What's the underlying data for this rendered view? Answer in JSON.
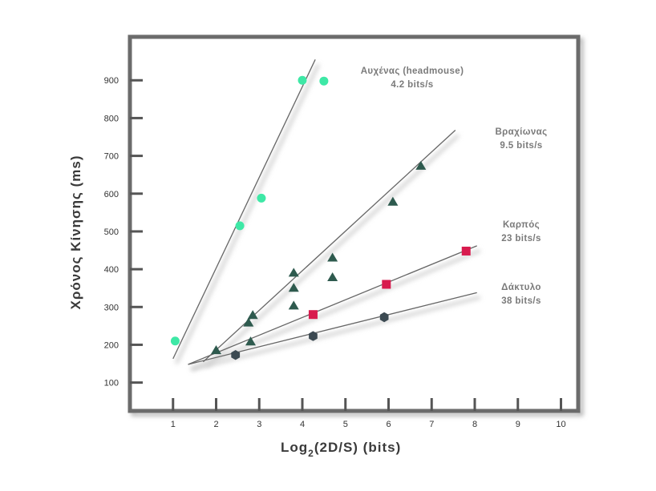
{
  "chart_data": {
    "type": "scatter",
    "ylabel": "Χρόνος Κίνησης (ms)",
    "xlabel_main": "Log",
    "xlabel_sub": "2",
    "xlabel_rest": "(2D/S)  (bits)",
    "xlim": [
      0,
      10.4
    ],
    "ylim": [
      25,
      1015
    ],
    "x_ticks": [
      1,
      2,
      3,
      4,
      5,
      6,
      7,
      8,
      9,
      10
    ],
    "y_ticks": [
      100,
      200,
      300,
      400,
      500,
      600,
      700,
      800,
      900
    ],
    "grid": false,
    "colors": {
      "frame": "#6b6b6b",
      "fit_line": "#666666",
      "neck": "#3ee8a6",
      "arm": "#2e5a4e",
      "wrist": "#d81b4e",
      "finger": "#3c4a52"
    },
    "series": [
      {
        "annotation": "Αυχένας (headmouse)",
        "rate": "4.2 bits/s",
        "marker": "circle",
        "points": [
          [
            1.05,
            210
          ],
          [
            2.55,
            515
          ],
          [
            3.05,
            588
          ],
          [
            4.0,
            900
          ],
          [
            4.5,
            898
          ]
        ],
        "fit": [
          [
            1.0,
            163
          ],
          [
            4.3,
            955
          ]
        ]
      },
      {
        "annotation": "Βραχίωνας",
        "rate": "9.5 bits/s",
        "marker": "triangle",
        "points": [
          [
            2.0,
            185
          ],
          [
            2.75,
            258
          ],
          [
            2.85,
            278
          ],
          [
            2.8,
            208
          ],
          [
            3.8,
            390
          ],
          [
            3.8,
            350
          ],
          [
            3.8,
            303
          ],
          [
            4.7,
            430
          ],
          [
            4.7,
            378
          ],
          [
            6.1,
            578
          ],
          [
            6.75,
            673
          ]
        ],
        "fit": [
          [
            1.7,
            155
          ],
          [
            7.55,
            768
          ]
        ]
      },
      {
        "annotation": "Καρπός",
        "rate": "23 bits/s",
        "marker": "square",
        "points": [
          [
            4.25,
            280
          ],
          [
            5.95,
            360
          ],
          [
            7.8,
            448
          ]
        ],
        "fit": [
          [
            1.35,
            148
          ],
          [
            8.05,
            462
          ]
        ]
      },
      {
        "annotation": "Δάκτυλο",
        "rate": "38 bits/s",
        "marker": "hexagon",
        "points": [
          [
            2.45,
            173
          ],
          [
            4.25,
            223
          ],
          [
            5.9,
            273
          ]
        ],
        "fit": [
          [
            1.35,
            148
          ],
          [
            8.05,
            338
          ]
        ]
      }
    ]
  }
}
